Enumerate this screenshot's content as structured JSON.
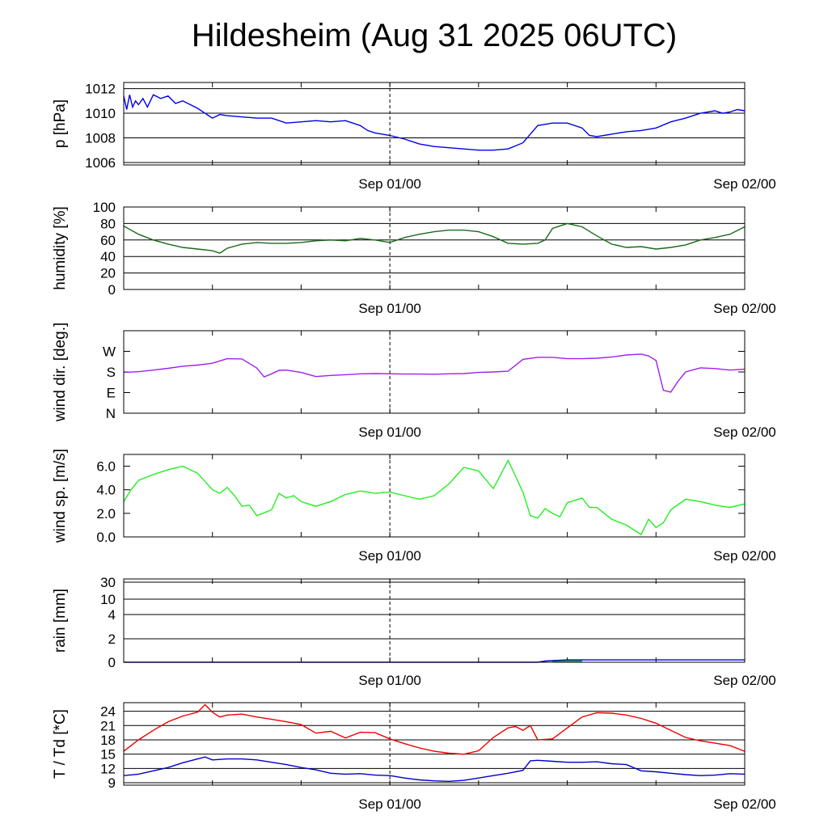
{
  "title": "Hildesheim (Aug 31 2025 06UTC)",
  "x_tick_labels": [
    "Sep 01/00",
    "Sep 02/00"
  ],
  "colors": {
    "pressure": "#0000ee",
    "humidity": "#1a6b1a",
    "wind_dir": "#a020f0",
    "wind_speed": "#22ee22",
    "rain": "#0000cc",
    "rain_bar": "#22bb22",
    "temperature": "#ee0000",
    "dewpoint": "#0000cc"
  },
  "chart_data": [
    {
      "type": "line",
      "id": "pressure",
      "ylabel": "p [hPa]",
      "ylim": [
        1005.8,
        1012.5
      ],
      "yticks": [
        1006,
        1008,
        1010,
        1012
      ],
      "x_unit": "hours since Aug 31 00UTC",
      "xlim": [
        6,
        48
      ],
      "grid": true,
      "series": [
        {
          "color_key": "pressure",
          "x": [
            6,
            6.2,
            6.4,
            6.6,
            6.8,
            7,
            7.3,
            7.6,
            8,
            8.5,
            9,
            9.5,
            10,
            10.5,
            11,
            11.5,
            12,
            12.5,
            13,
            14,
            15,
            16,
            17,
            18,
            19,
            20,
            21,
            22,
            22.5,
            23,
            24,
            25,
            26,
            27,
            28,
            29,
            30,
            31,
            32,
            33,
            34,
            35,
            36,
            37,
            37.5,
            38,
            39,
            40,
            41,
            42,
            43,
            44,
            45,
            46,
            46.5,
            47,
            47.5,
            48
          ],
          "y": [
            1011.4,
            1010.3,
            1011.5,
            1010.5,
            1011.0,
            1010.7,
            1011.2,
            1010.5,
            1011.5,
            1011.2,
            1011.4,
            1010.8,
            1011.0,
            1010.7,
            1010.4,
            1010.0,
            1009.6,
            1009.9,
            1009.8,
            1009.7,
            1009.6,
            1009.6,
            1009.2,
            1009.3,
            1009.4,
            1009.3,
            1009.4,
            1009.0,
            1008.6,
            1008.4,
            1008.2,
            1007.9,
            1007.5,
            1007.3,
            1007.2,
            1007.1,
            1007.0,
            1007.0,
            1007.1,
            1007.6,
            1009.0,
            1009.2,
            1009.2,
            1008.8,
            1008.2,
            1008.1,
            1008.3,
            1008.5,
            1008.6,
            1008.8,
            1009.3,
            1009.6,
            1010.0,
            1010.2,
            1010.0,
            1010.1,
            1010.3,
            1010.2
          ]
        }
      ]
    },
    {
      "type": "line",
      "id": "humidity",
      "ylabel": "humidity [%]",
      "ylim": [
        0,
        100
      ],
      "yticks": [
        0,
        20,
        40,
        60,
        80,
        100
      ],
      "x_unit": "hours since Aug 31 00UTC",
      "xlim": [
        6,
        48
      ],
      "grid": true,
      "series": [
        {
          "color_key": "humidity",
          "x": [
            6,
            7,
            8,
            9,
            10,
            11,
            11.5,
            12,
            12.5,
            13,
            14,
            15,
            16,
            17,
            18,
            19,
            20,
            21,
            22,
            23,
            24,
            25,
            26,
            27,
            28,
            29,
            30,
            31,
            32,
            33,
            34,
            34.5,
            35,
            36,
            37,
            38,
            39,
            40,
            41,
            42,
            43,
            44,
            45,
            46,
            47,
            48
          ],
          "y": [
            77,
            67,
            60,
            55,
            51,
            49,
            48,
            47,
            44,
            50,
            55,
            57,
            56,
            56,
            57,
            59,
            60,
            59,
            62,
            60,
            57,
            63,
            67,
            70,
            72,
            72,
            70,
            64,
            56,
            55,
            56,
            60,
            74,
            80,
            76,
            65,
            55,
            51,
            52,
            49,
            51,
            54,
            60,
            63,
            67,
            76
          ]
        }
      ]
    },
    {
      "type": "scatter",
      "id": "wind_dir",
      "ylabel": "wind dir. [deg.]",
      "ylim": [
        0,
        360
      ],
      "yticks": [
        0,
        90,
        180,
        270
      ],
      "ytick_labels": [
        "N",
        "E",
        "S",
        "W"
      ],
      "x_unit": "hours since Aug 31 00UTC",
      "xlim": [
        6,
        48
      ],
      "grid": false,
      "series": [
        {
          "color_key": "wind_dir",
          "x": [
            6,
            7,
            8,
            9,
            10,
            11,
            12,
            13,
            14,
            15,
            15.5,
            16,
            16.5,
            17,
            18,
            19,
            20,
            21,
            22,
            23,
            24,
            25,
            26,
            27,
            28,
            29,
            30,
            31,
            32,
            33,
            34,
            35,
            36,
            37,
            38,
            39,
            40,
            41,
            41.5,
            42,
            42.5,
            43,
            43.5,
            44,
            45,
            46,
            47,
            48
          ],
          "y": [
            178,
            181,
            188,
            196,
            205,
            210,
            218,
            238,
            237,
            197,
            158,
            172,
            187,
            188,
            178,
            160,
            165,
            168,
            172,
            173,
            172,
            171,
            171,
            170,
            172,
            173,
            178,
            180,
            183,
            235,
            244,
            244,
            238,
            238,
            240,
            245,
            254,
            258,
            250,
            230,
            100,
            92,
            140,
            180,
            198,
            195,
            188,
            192
          ]
        }
      ]
    },
    {
      "type": "line",
      "id": "wind_speed",
      "ylabel": "wind sp. [m/s]",
      "ylim": [
        0,
        7
      ],
      "yticks": [
        0,
        2,
        4,
        6
      ],
      "ytick_labels": [
        "0.0",
        "2.0",
        "4.0",
        "6.0"
      ],
      "x_unit": "hours since Aug 31 00UTC",
      "xlim": [
        6,
        48
      ],
      "grid": false,
      "series": [
        {
          "color_key": "wind_speed",
          "x": [
            6,
            6.5,
            7,
            8,
            9,
            10,
            11,
            12,
            12.5,
            13,
            13.5,
            14,
            14.5,
            15,
            16,
            16.5,
            17,
            17.5,
            18,
            19,
            20,
            21,
            22,
            23,
            24,
            25,
            26,
            27,
            28,
            29,
            30,
            31,
            32,
            33,
            33.5,
            34,
            34.5,
            35,
            35.5,
            36,
            37,
            37.5,
            38,
            39,
            40,
            41,
            41.5,
            42,
            42.5,
            43,
            44,
            45,
            46,
            47,
            48
          ],
          "y": [
            3.0,
            4.0,
            4.8,
            5.3,
            5.7,
            6.0,
            5.4,
            4.0,
            3.7,
            4.2,
            3.5,
            2.6,
            2.7,
            1.8,
            2.3,
            3.7,
            3.3,
            3.5,
            3.0,
            2.6,
            3.0,
            3.6,
            3.9,
            3.7,
            3.8,
            3.5,
            3.2,
            3.5,
            4.5,
            5.9,
            5.6,
            4.1,
            6.5,
            3.8,
            1.8,
            1.6,
            2.4,
            2.0,
            1.7,
            2.9,
            3.3,
            2.5,
            2.5,
            1.5,
            1.0,
            0.2,
            1.5,
            0.8,
            1.2,
            2.3,
            3.2,
            3.0,
            2.7,
            2.5,
            2.8
          ]
        }
      ]
    },
    {
      "type": "area",
      "id": "rain",
      "ylabel": "rain [mm]",
      "ylim": [
        0,
        32
      ],
      "yticks": [
        0,
        2,
        4,
        10,
        30
      ],
      "scale": "nonlinear",
      "x_unit": "hours since Aug 31 00UTC",
      "xlim": [
        6,
        48
      ],
      "grid": true,
      "series": [
        {
          "color_key": "rain",
          "x": [
            6,
            34,
            34.5,
            36,
            48
          ],
          "y": [
            0,
            0,
            0.1,
            0.2,
            0.2
          ]
        }
      ],
      "bars": [
        {
          "color_key": "rain_bar",
          "x_start": 35,
          "x_end": 37,
          "value": 0.2
        }
      ]
    },
    {
      "type": "line",
      "id": "temperature",
      "ylabel": "T / Td [*C]",
      "ylim": [
        8.5,
        25.8
      ],
      "yticks": [
        9,
        12,
        15,
        18,
        21,
        24
      ],
      "x_unit": "hours since Aug 31 00UTC",
      "xlim": [
        6,
        48
      ],
      "grid": true,
      "series": [
        {
          "color_key": "temperature",
          "x": [
            6,
            7,
            8,
            9,
            10,
            11,
            11.5,
            12,
            12.5,
            13,
            14,
            15,
            16,
            17,
            18,
            19,
            20,
            21,
            22,
            23,
            24,
            25,
            26,
            27,
            28,
            29,
            30,
            31,
            32,
            32.5,
            33,
            33.5,
            34,
            35,
            36,
            37,
            38,
            39,
            40,
            41,
            42,
            43,
            44,
            45,
            46,
            47,
            48
          ],
          "y": [
            15.6,
            18.0,
            20.0,
            21.8,
            23.0,
            23.8,
            25.4,
            23.8,
            22.8,
            23.2,
            23.4,
            22.8,
            22.3,
            21.8,
            21.2,
            19.4,
            19.8,
            18.4,
            19.6,
            19.5,
            18.2,
            17.2,
            16.3,
            15.6,
            15.2,
            15.0,
            15.7,
            18.5,
            20.5,
            20.8,
            20.0,
            21.0,
            18.0,
            18.2,
            20.5,
            22.8,
            23.7,
            23.6,
            23.2,
            22.5,
            21.5,
            20.0,
            18.5,
            17.8,
            17.3,
            16.8,
            15.6
          ]
        },
        {
          "color_key": "dewpoint",
          "x": [
            6,
            7,
            8,
            9,
            10,
            11,
            11.5,
            12,
            13,
            14,
            15,
            16,
            17,
            18,
            19,
            20,
            21,
            22,
            23,
            24,
            25,
            26,
            27,
            28,
            29,
            30,
            31,
            32,
            33,
            33.5,
            34,
            35,
            36,
            37,
            38,
            39,
            40,
            41,
            42,
            43,
            44,
            45,
            46,
            47,
            48
          ],
          "y": [
            10.5,
            10.8,
            11.5,
            12.2,
            13.2,
            14.0,
            14.4,
            13.8,
            14.0,
            14.0,
            13.8,
            13.3,
            12.8,
            12.2,
            11.7,
            11.0,
            10.8,
            10.9,
            10.6,
            10.5,
            10.0,
            9.6,
            9.4,
            9.3,
            9.5,
            10.0,
            10.5,
            11.0,
            11.6,
            13.6,
            13.7,
            13.5,
            13.3,
            13.3,
            13.4,
            13.0,
            12.8,
            11.5,
            11.3,
            11.0,
            10.7,
            10.5,
            10.6,
            10.9,
            10.8
          ]
        }
      ]
    }
  ]
}
